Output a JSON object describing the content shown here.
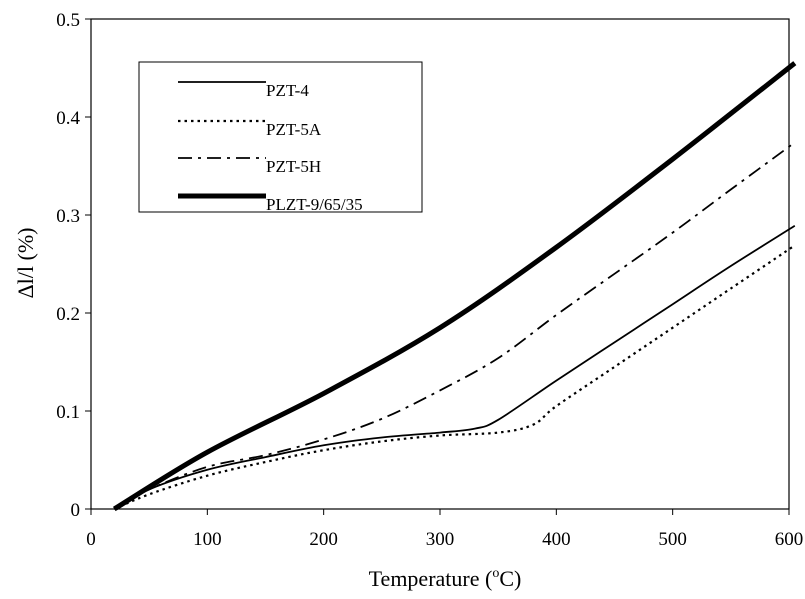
{
  "chart_data": {
    "type": "line",
    "xlabel": "Temperature (",
    "xlabel_sup": "o",
    "xlabel_unit": "C)",
    "ylabel": "Δl/l (%)",
    "xlim": [
      0,
      600
    ],
    "ylim": [
      0,
      0.5
    ],
    "xticks": [
      0,
      100,
      200,
      300,
      400,
      500,
      600
    ],
    "yticks": [
      0,
      0.1,
      0.2,
      0.3,
      0.4,
      0.5
    ],
    "grid": false,
    "legend_position": "top-left",
    "series": [
      {
        "name": "PZT-4",
        "style": "solid",
        "x": [
          20,
          50,
          100,
          150,
          200,
          250,
          300,
          330,
          350,
          400,
          450,
          500,
          550,
          605
        ],
        "y": [
          0,
          0.02,
          0.04,
          0.053,
          0.065,
          0.073,
          0.078,
          0.082,
          0.091,
          0.131,
          0.17,
          0.209,
          0.248,
          0.289
        ]
      },
      {
        "name": "PZT-5A",
        "style": "dotted",
        "x": [
          20,
          50,
          100,
          150,
          200,
          250,
          300,
          350,
          380,
          400,
          450,
          500,
          550,
          605
        ],
        "y": [
          0,
          0.015,
          0.034,
          0.048,
          0.06,
          0.069,
          0.075,
          0.078,
          0.086,
          0.105,
          0.145,
          0.185,
          0.225,
          0.269
        ]
      },
      {
        "name": "PZT-5H",
        "style": "dash-dot",
        "x": [
          20,
          50,
          100,
          150,
          200,
          250,
          300,
          350,
          400,
          450,
          500,
          550,
          605
        ],
        "y": [
          0,
          0.02,
          0.043,
          0.055,
          0.071,
          0.092,
          0.121,
          0.154,
          0.198,
          0.24,
          0.282,
          0.326,
          0.374
        ]
      },
      {
        "name": "PLZT-9/65/35",
        "style": "thick",
        "x": [
          20,
          100,
          200,
          300,
          400,
          500,
          605
        ],
        "y": [
          0,
          0.058,
          0.118,
          0.185,
          0.267,
          0.357,
          0.455
        ]
      }
    ]
  }
}
